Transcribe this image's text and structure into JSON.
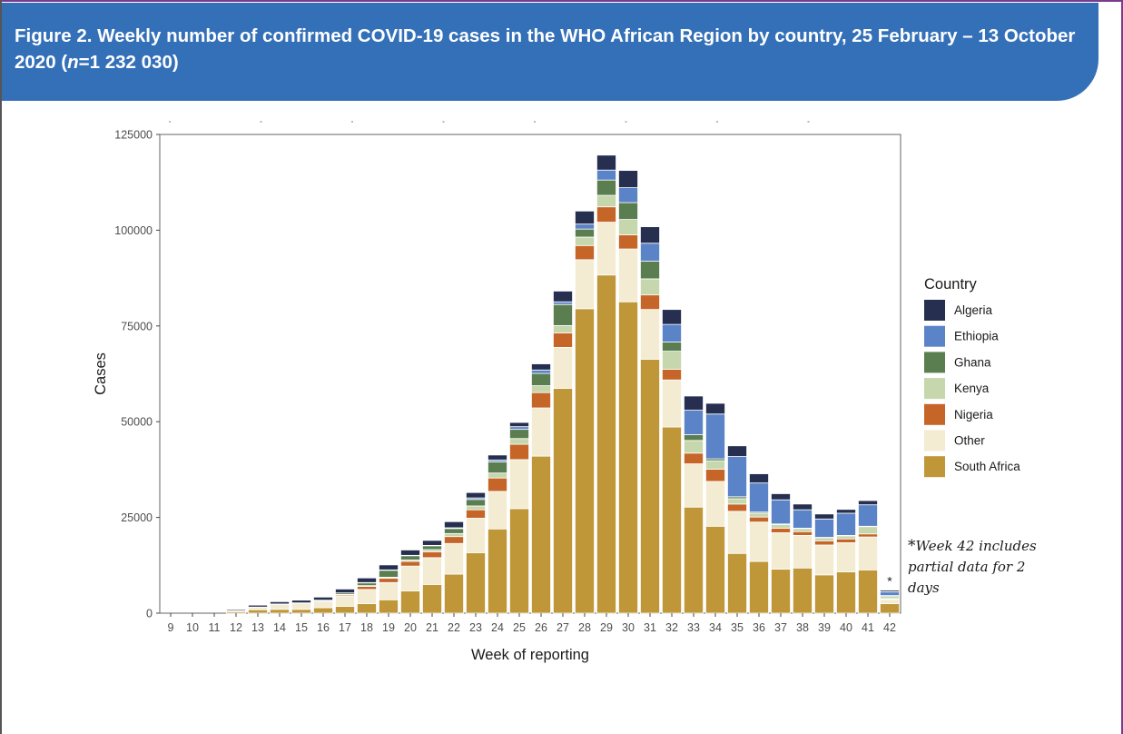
{
  "header": {
    "title_part1": "Figure 2. Weekly number of confirmed COVID-19 cases in the WHO African Region by country, 25 February – 13 October 2020 (",
    "title_n": "n",
    "title_part2": "=1 232 030)"
  },
  "footnote": {
    "star": "*",
    "text": "Week 42 includes partial data for 2 days"
  },
  "colors": {
    "banner": "#3470b8",
    "Algeria": "#262f4f",
    "Ethiopia": "#5b84c8",
    "Ghana": "#5b7e51",
    "Kenya": "#c6d6ad",
    "Nigeria": "#c66528",
    "Other": "#f3ecd2",
    "South Africa": "#bf9638"
  },
  "chart_data": {
    "type": "bar",
    "stacked": true,
    "xlabel": "Week of reporting",
    "ylabel": "Cases",
    "ylim": [
      0,
      125000
    ],
    "yticks": [
      0,
      25000,
      50000,
      75000,
      100000,
      125000
    ],
    "legend_title": "Country",
    "legend_position": "right",
    "categories": [
      "9",
      "10",
      "11",
      "12",
      "13",
      "14",
      "15",
      "16",
      "17",
      "18",
      "19",
      "20",
      "21",
      "22",
      "23",
      "24",
      "25",
      "26",
      "27",
      "28",
      "29",
      "30",
      "31",
      "32",
      "33",
      "34",
      "35",
      "36",
      "37",
      "38",
      "39",
      "40",
      "41",
      "42"
    ],
    "bar_annotation": {
      "category": "42",
      "text": "*"
    },
    "series": [
      {
        "name": "South Africa",
        "values": [
          0,
          0,
          0,
          400,
          900,
          1000,
          1000,
          1400,
          1800,
          2500,
          3500,
          5800,
          7500,
          10200,
          15800,
          22000,
          27300,
          41000,
          58700,
          79500,
          88300,
          81300,
          66300,
          48600,
          27700,
          22700,
          15600,
          13500,
          11500,
          11800,
          10000,
          10800,
          11300,
          2500
        ]
      },
      {
        "name": "Other",
        "values": [
          0,
          0,
          0,
          300,
          700,
          1300,
          1500,
          1700,
          2700,
          3700,
          4500,
          6500,
          7000,
          8000,
          9000,
          9800,
          12800,
          12600,
          10700,
          12800,
          13800,
          13800,
          13000,
          12300,
          11300,
          11700,
          11000,
          10300,
          9500,
          8500,
          7800,
          7600,
          8600,
          1100
        ]
      },
      {
        "name": "Nigeria",
        "values": [
          0,
          0,
          0,
          0,
          0,
          0,
          0,
          100,
          300,
          800,
          1100,
          1200,
          1500,
          1800,
          2200,
          3500,
          4000,
          4000,
          3800,
          3700,
          4000,
          3700,
          3800,
          2800,
          2800,
          3200,
          1900,
          1300,
          1200,
          1000,
          1100,
          1000,
          800,
          200
        ]
      },
      {
        "name": "Kenya",
        "values": [
          0,
          0,
          0,
          0,
          0,
          0,
          0,
          0,
          100,
          200,
          300,
          400,
          600,
          800,
          1000,
          1300,
          1500,
          1800,
          1900,
          2200,
          3000,
          4000,
          4200,
          4700,
          3300,
          2200,
          1400,
          1000,
          900,
          800,
          800,
          800,
          1900,
          700
        ]
      },
      {
        "name": "Ghana",
        "values": [
          0,
          0,
          0,
          0,
          0,
          100,
          200,
          200,
          400,
          700,
          1800,
          1100,
          1000,
          1300,
          1700,
          2900,
          2400,
          3200,
          5500,
          2100,
          4000,
          4400,
          4600,
          2400,
          1500,
          500,
          500,
          300,
          200,
          100,
          100,
          100,
          100,
          100
        ]
      },
      {
        "name": "Ethiopia",
        "values": [
          0,
          0,
          0,
          0,
          0,
          0,
          0,
          0,
          0,
          100,
          100,
          100,
          100,
          200,
          400,
          500,
          700,
          900,
          700,
          1300,
          2600,
          3900,
          4700,
          4600,
          6400,
          11700,
          10500,
          7600,
          6300,
          4800,
          4800,
          5800,
          5600,
          1000
        ]
      },
      {
        "name": "Algeria",
        "values": [
          0,
          0,
          0,
          300,
          500,
          600,
          700,
          800,
          1000,
          1200,
          1300,
          1400,
          1300,
          1600,
          1400,
          1300,
          1100,
          1600,
          2800,
          3400,
          3900,
          4500,
          4300,
          3900,
          3700,
          2800,
          2800,
          2400,
          1600,
          1500,
          1300,
          1000,
          1100,
          400
        ]
      }
    ]
  }
}
